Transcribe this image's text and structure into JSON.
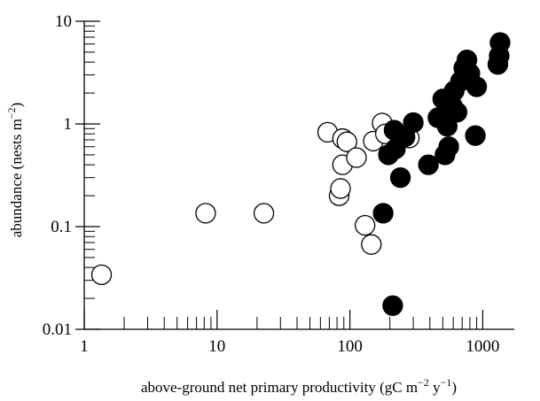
{
  "chart_data": {
    "type": "scatter",
    "title": "",
    "xscale": "log",
    "yscale": "log",
    "xlim": [
      1,
      1600
    ],
    "ylim": [
      0.01,
      10
    ],
    "grid": false,
    "legend": "none",
    "xlabel_parts": [
      "above-ground net primary productivity (gC m",
      "−2",
      " y",
      "−1",
      ")"
    ],
    "ylabel_parts": [
      "abundance (nests m",
      "−2",
      ")"
    ],
    "xticks": [
      {
        "value": 1,
        "label": "1"
      },
      {
        "value": 10,
        "label": "10"
      },
      {
        "value": 100,
        "label": "100"
      },
      {
        "value": 1000,
        "label": "1000"
      }
    ],
    "yticks": [
      {
        "value": 0.01,
        "label": "0.01"
      },
      {
        "value": 0.1,
        "label": "0.1"
      },
      {
        "value": 1,
        "label": "1"
      },
      {
        "value": 10,
        "label": "10"
      }
    ],
    "series": [
      {
        "marker": "open-circle",
        "color": "#ffffff",
        "edge": "#000000",
        "points": [
          [
            1.35,
            0.034
          ],
          [
            8.2,
            0.135
          ],
          [
            22.5,
            0.135
          ],
          [
            68,
            0.83
          ],
          [
            83,
            0.2
          ],
          [
            85,
            0.235
          ],
          [
            88,
            0.72
          ],
          [
            88,
            0.4
          ],
          [
            95,
            0.67
          ],
          [
            112,
            0.47
          ],
          [
            130,
            0.103
          ],
          [
            145,
            0.067
          ],
          [
            150,
            0.68
          ],
          [
            175,
            1.02
          ],
          [
            185,
            0.8
          ],
          [
            280,
            0.73
          ]
        ]
      },
      {
        "marker": "filled-circle",
        "color": "#000000",
        "edge": "#000000",
        "points": [
          [
            178,
            0.135
          ],
          [
            210,
            0.017
          ],
          [
            195,
            0.5
          ],
          [
            215,
            0.87
          ],
          [
            220,
            0.57
          ],
          [
            240,
            0.3
          ],
          [
            260,
            0.75
          ],
          [
            300,
            1.03
          ],
          [
            390,
            0.4
          ],
          [
            460,
            1.15
          ],
          [
            500,
            1.75
          ],
          [
            520,
            0.5
          ],
          [
            540,
            0.95
          ],
          [
            555,
            0.6
          ],
          [
            590,
            1.5
          ],
          [
            610,
            2.1
          ],
          [
            640,
            1.3
          ],
          [
            680,
            2.6
          ],
          [
            720,
            3.5
          ],
          [
            760,
            4.2
          ],
          [
            800,
            3.1
          ],
          [
            880,
            0.77
          ],
          [
            900,
            2.3
          ],
          [
            1300,
            3.8
          ],
          [
            1330,
            4.6
          ],
          [
            1350,
            6.2
          ]
        ]
      }
    ]
  }
}
